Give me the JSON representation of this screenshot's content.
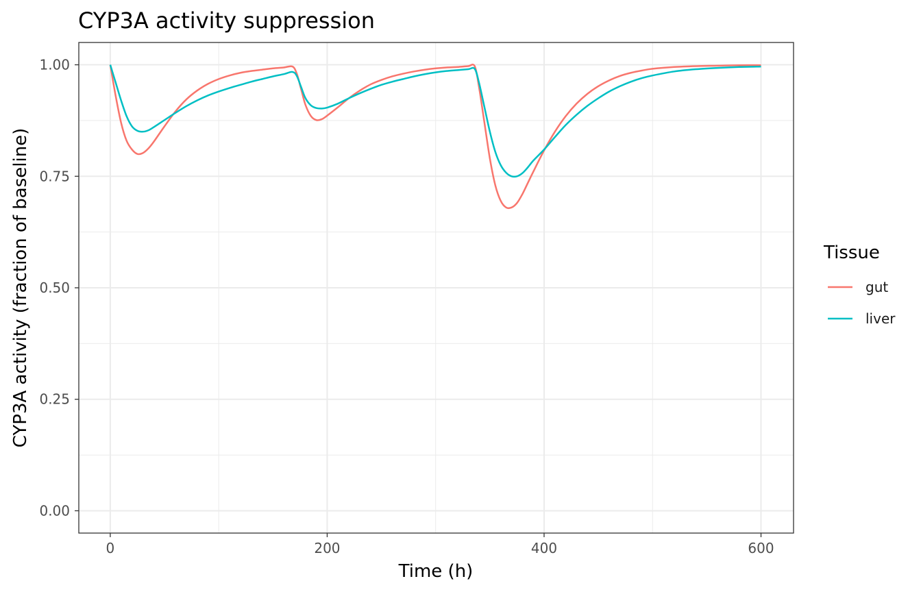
{
  "chart_data": {
    "type": "line",
    "title": "CYP3A activity suppression",
    "xlabel": "Time (h)",
    "ylabel": "CYP3A activity (fraction of baseline)",
    "xlim": [
      -29,
      630
    ],
    "ylim": [
      -0.05,
      1.05
    ],
    "x_ticks": [
      0,
      200,
      400,
      600
    ],
    "y_ticks": [
      0.0,
      0.25,
      0.5,
      0.75,
      1.0
    ],
    "x_tick_labels": [
      "0",
      "200",
      "400",
      "600"
    ],
    "y_tick_labels": [
      "0.00",
      "0.25",
      "0.50",
      "0.75",
      "1.00"
    ],
    "x_minor_ticks": [
      100,
      300,
      500
    ],
    "y_minor_ticks": [
      0.125,
      0.375,
      0.625,
      0.875
    ],
    "grid": true,
    "legend": {
      "title": "Tissue",
      "position": "right"
    },
    "series": [
      {
        "name": "gut",
        "color": "#F8766D",
        "x": [
          0,
          5,
          10,
          15,
          20,
          25,
          30,
          35,
          40,
          50,
          60,
          70,
          80,
          90,
          100,
          110,
          120,
          130,
          140,
          150,
          160,
          168,
          172,
          176,
          180,
          185,
          190,
          195,
          200,
          210,
          220,
          230,
          240,
          250,
          260,
          270,
          280,
          290,
          300,
          310,
          320,
          330,
          336,
          340,
          345,
          350,
          355,
          360,
          365,
          370,
          375,
          380,
          385,
          390,
          400,
          410,
          420,
          430,
          440,
          450,
          460,
          470,
          480,
          490,
          500,
          520,
          540,
          560,
          580,
          600
        ],
        "y": [
          1.0,
          0.93,
          0.87,
          0.83,
          0.81,
          0.8,
          0.802,
          0.812,
          0.827,
          0.862,
          0.895,
          0.922,
          0.942,
          0.957,
          0.968,
          0.976,
          0.982,
          0.986,
          0.989,
          0.992,
          0.994,
          0.996,
          0.98,
          0.945,
          0.91,
          0.885,
          0.876,
          0.878,
          0.886,
          0.905,
          0.925,
          0.942,
          0.956,
          0.966,
          0.974,
          0.98,
          0.985,
          0.989,
          0.992,
          0.994,
          0.995,
          0.997,
          0.997,
          0.95,
          0.87,
          0.79,
          0.73,
          0.695,
          0.68,
          0.68,
          0.69,
          0.71,
          0.735,
          0.76,
          0.808,
          0.85,
          0.885,
          0.913,
          0.935,
          0.952,
          0.965,
          0.975,
          0.982,
          0.987,
          0.991,
          0.995,
          0.997,
          0.998,
          0.999,
          0.999
        ]
      },
      {
        "name": "liver",
        "color": "#00BFC4",
        "x": [
          0,
          5,
          10,
          15,
          20,
          25,
          30,
          35,
          40,
          50,
          60,
          70,
          80,
          90,
          100,
          110,
          120,
          130,
          140,
          150,
          160,
          168,
          172,
          176,
          180,
          185,
          190,
          195,
          200,
          210,
          220,
          230,
          240,
          250,
          260,
          270,
          280,
          290,
          300,
          310,
          320,
          330,
          336,
          340,
          345,
          350,
          355,
          360,
          365,
          370,
          375,
          380,
          385,
          390,
          400,
          410,
          420,
          430,
          440,
          450,
          460,
          470,
          480,
          490,
          500,
          520,
          540,
          560,
          580,
          600
        ],
        "y": [
          1.0,
          0.96,
          0.92,
          0.885,
          0.862,
          0.852,
          0.85,
          0.853,
          0.86,
          0.876,
          0.892,
          0.907,
          0.92,
          0.931,
          0.94,
          0.948,
          0.955,
          0.962,
          0.968,
          0.974,
          0.979,
          0.984,
          0.975,
          0.95,
          0.925,
          0.909,
          0.903,
          0.902,
          0.904,
          0.913,
          0.925,
          0.936,
          0.946,
          0.955,
          0.962,
          0.968,
          0.974,
          0.979,
          0.983,
          0.986,
          0.988,
          0.99,
          0.991,
          0.96,
          0.905,
          0.85,
          0.805,
          0.775,
          0.758,
          0.75,
          0.75,
          0.757,
          0.77,
          0.785,
          0.81,
          0.838,
          0.865,
          0.888,
          0.908,
          0.925,
          0.94,
          0.952,
          0.962,
          0.97,
          0.976,
          0.985,
          0.99,
          0.993,
          0.995,
          0.996
        ]
      }
    ]
  }
}
